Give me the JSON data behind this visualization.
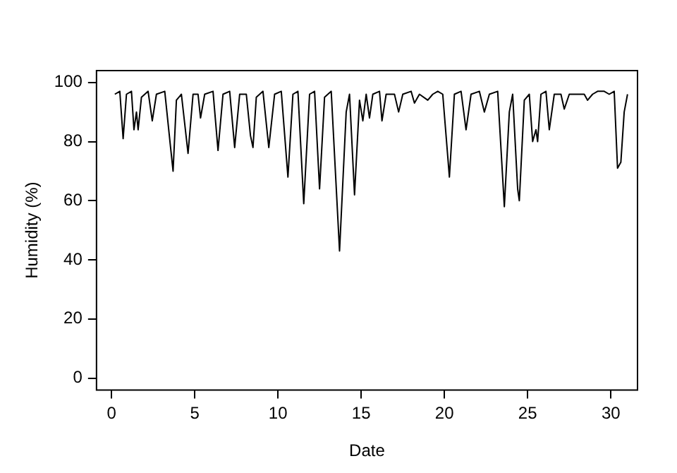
{
  "chart_data": {
    "type": "line",
    "xlabel": "Date",
    "ylabel": "Humidity (%)",
    "xlim": [
      -0.9,
      31.6
    ],
    "xticks": [
      0,
      5,
      10,
      15,
      20,
      25,
      30
    ],
    "ylim": [
      -4,
      104
    ],
    "yticks": [
      0,
      20,
      40,
      60,
      80,
      100
    ],
    "grid": false,
    "legend": false,
    "marker": "none",
    "line_style": "solid",
    "series": [
      {
        "color": "#000000",
        "x": [
          0.2,
          0.5,
          0.7,
          0.9,
          1.2,
          1.35,
          1.5,
          1.6,
          1.8,
          2.2,
          2.45,
          2.7,
          3.2,
          3.55,
          3.7,
          3.9,
          4.2,
          4.6,
          4.9,
          5.2,
          5.35,
          5.6,
          6.1,
          6.4,
          6.7,
          7.1,
          7.4,
          7.7,
          8.1,
          8.35,
          8.5,
          8.7,
          9.1,
          9.45,
          9.8,
          10.2,
          10.6,
          10.9,
          11.2,
          11.55,
          11.9,
          12.2,
          12.5,
          12.8,
          13.2,
          13.7,
          14.1,
          14.3,
          14.6,
          14.9,
          15.1,
          15.3,
          15.5,
          15.7,
          16.1,
          16.25,
          16.5,
          17.0,
          17.25,
          17.5,
          18.0,
          18.2,
          18.5,
          19.0,
          19.3,
          19.6,
          19.9,
          20.3,
          20.6,
          21.0,
          21.3,
          21.6,
          22.1,
          22.4,
          22.7,
          23.2,
          23.6,
          23.9,
          24.1,
          24.4,
          24.5,
          24.8,
          25.1,
          25.3,
          25.5,
          25.6,
          25.8,
          26.1,
          26.3,
          26.6,
          27.0,
          27.2,
          27.5,
          28.0,
          28.4,
          28.6,
          28.9,
          29.2,
          29.6,
          29.9,
          30.2,
          30.4,
          30.6,
          30.8,
          31.0
        ],
        "values": [
          96,
          97,
          81,
          96,
          97,
          84,
          90,
          84,
          95,
          97,
          87,
          96,
          97,
          78,
          70,
          94,
          96,
          76,
          96,
          96,
          88,
          96,
          97,
          77,
          96,
          97,
          78,
          96,
          96,
          82,
          78,
          95,
          97,
          78,
          96,
          97,
          68,
          96,
          97,
          59,
          96,
          97,
          64,
          95,
          97,
          43,
          90,
          96,
          62,
          94,
          87,
          96,
          88,
          96,
          97,
          87,
          96,
          96,
          90,
          96,
          97,
          93,
          96,
          94,
          96,
          97,
          96,
          68,
          96,
          97,
          84,
          96,
          97,
          90,
          96,
          97,
          58,
          90,
          96,
          64,
          60,
          94,
          96,
          80,
          84,
          80,
          96,
          97,
          84,
          96,
          96,
          91,
          96,
          96,
          96,
          94,
          96,
          97,
          97,
          96,
          97,
          71,
          73,
          90,
          96
        ]
      }
    ]
  }
}
